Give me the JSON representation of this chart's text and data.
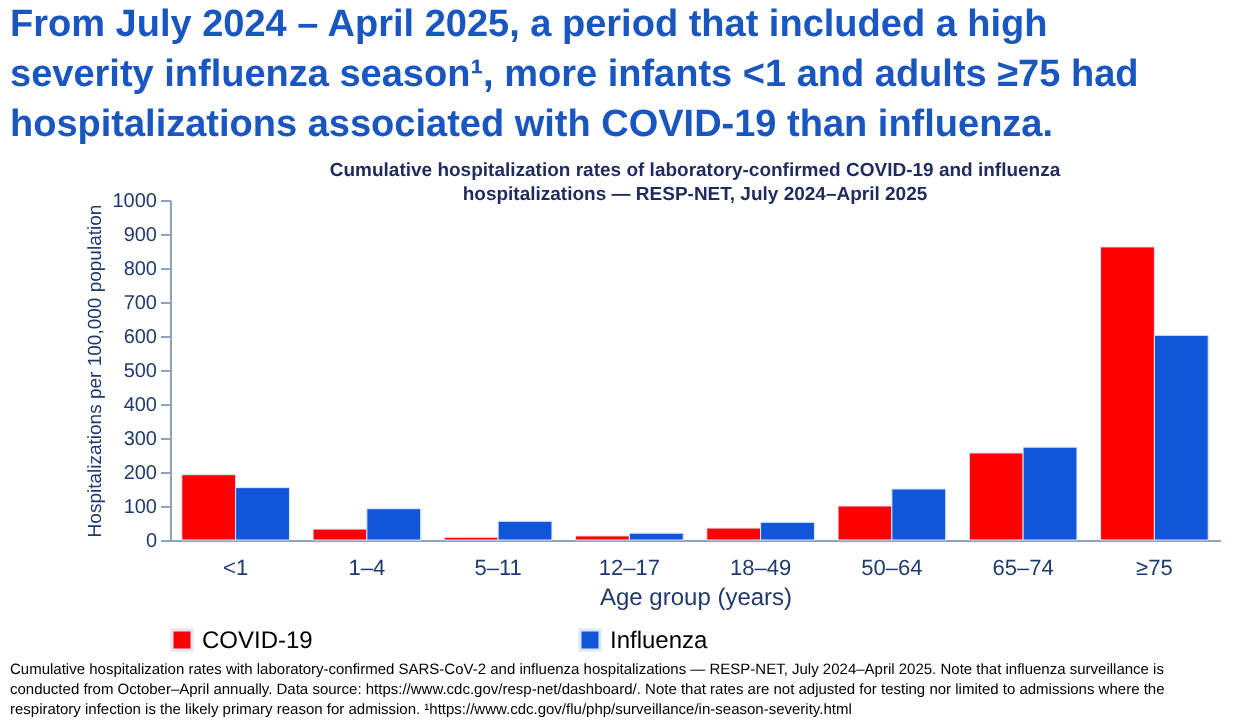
{
  "chart_data": {
    "type": "bar",
    "title": "From July 2024 – April 2025, a period that included a high severity influenza season¹, more infants <1 and adults ≥75 had hospitalizations associated with COVID-19 than influenza.",
    "subtitle": "Cumulative hospitalization rates of laboratory-confirmed COVID-19 and influenza hospitalizations — RESP-NET, July 2024–April 2025",
    "xlabel": "Age group (years)",
    "ylabel": "Hospitalizations per 100,000 population",
    "categories": [
      "<1",
      "1–4",
      "5–11",
      "12–17",
      "18–49",
      "50–64",
      "65–74",
      "≥75"
    ],
    "series": [
      {
        "name": "COVID-19",
        "color": "#ff0000",
        "values": [
          192,
          32,
          8,
          12,
          35,
          100,
          256,
          862
        ]
      },
      {
        "name": "Influenza",
        "color": "#1155d8",
        "values": [
          154,
          92,
          55,
          20,
          52,
          150,
          273,
          602
        ]
      }
    ],
    "ylim": [
      0,
      1000
    ],
    "yticks": [
      0,
      100,
      200,
      300,
      400,
      500,
      600,
      700,
      800,
      900,
      1000
    ],
    "grid": false,
    "legend": "bottom",
    "annotations": [
      "Cumulative hospitalization rates with laboratory-confirmed SARS-CoV-2 and influenza hospitalizations — RESP-NET, July 2024–April 2025. Note that influenza surveillance is conducted from October–April annually. Data source: https://www.cdc.gov/resp-net/dashboard/. Note that rates are not adjusted for testing nor limited to admissions where the respiratory infection is the likely primary reason for admission. ¹https://www.cdc.gov/flu/php/surveillance/in-season-severity.html"
    ]
  }
}
